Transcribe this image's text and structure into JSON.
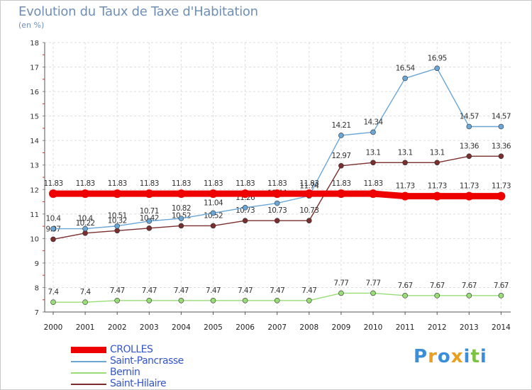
{
  "header": {
    "title": "Evolution du Taux de Taxe d'Habitation",
    "subtitle": "(en %)"
  },
  "legend": {
    "items": [
      {
        "label": "CROLLES",
        "color": "#ee0000",
        "thick": true
      },
      {
        "label": "Saint-Pancrasse",
        "color": "#6aa6d6",
        "thick": false
      },
      {
        "label": "Bernin",
        "color": "#99dd77",
        "thick": false
      },
      {
        "label": "Saint-Hilaire",
        "color": "#7a2e2e",
        "thick": false
      }
    ]
  },
  "logo": {
    "text": "Proxiti",
    "letters": [
      "P",
      "r",
      "o",
      "x",
      "i",
      "t",
      "i"
    ],
    "colors": [
      "#3b8ed8",
      "#e8a020",
      "#3b8ed8",
      "#e8a020",
      "#3b8ed8",
      "#7cc242",
      "#3b8ed8"
    ]
  },
  "chart_data": {
    "type": "line",
    "x": [
      "2000",
      "2001",
      "2002",
      "2003",
      "2004",
      "2005",
      "2006",
      "2007",
      "2008",
      "2009",
      "2010",
      "2011",
      "2012",
      "2013",
      "2014"
    ],
    "ylim": [
      7,
      18
    ],
    "yticks": [
      "7",
      "8",
      "9",
      "10",
      "11",
      "12",
      "13",
      "14",
      "15",
      "16",
      "17",
      "18"
    ],
    "series": [
      {
        "name": "Bernin",
        "color": "#99dd77",
        "values": [
          7.4,
          7.4,
          7.47,
          7.47,
          7.47,
          7.47,
          7.47,
          7.47,
          7.47,
          7.77,
          7.77,
          7.67,
          7.67,
          7.67,
          7.67
        ],
        "labels": [
          "7.4",
          "7.4",
          "7.47",
          "7.47",
          "7.47",
          "7.47",
          "7.47",
          "7.47",
          "7.47",
          "7.77",
          "7.77",
          "7.67",
          "7.67",
          "7.67",
          "7.67"
        ]
      },
      {
        "name": "Saint-Hilaire",
        "color": "#7a2e2e",
        "values": [
          9.97,
          10.22,
          10.32,
          10.42,
          10.52,
          10.52,
          10.73,
          10.73,
          10.73,
          12.97,
          13.1,
          13.1,
          13.1,
          13.36,
          13.36
        ],
        "labels": [
          "9.97",
          "10.22",
          "10.32",
          "10.42",
          "10.52",
          "10.52",
          "10.73",
          "10.73",
          "10.73",
          "12.97",
          "13.1",
          "13.1",
          "13.1",
          "13.36",
          "13.36"
        ]
      },
      {
        "name": "Saint-Pancrasse",
        "color": "#6aa6d6",
        "values": [
          10.4,
          10.4,
          10.51,
          10.71,
          10.82,
          11.04,
          11.26,
          11.44,
          11.74,
          14.21,
          14.34,
          16.54,
          16.95,
          14.57,
          14.57
        ],
        "labels": [
          "10.4",
          "10.4",
          "10.51",
          "10.71",
          "10.82",
          "11.04",
          "11.26",
          "11.44",
          "11.74",
          "14.21",
          "14.34",
          "16.54",
          "16.95",
          "14.57",
          "14.57"
        ]
      },
      {
        "name": "CROLLES",
        "color": "#ee0000",
        "values": [
          11.83,
          11.83,
          11.83,
          11.83,
          11.83,
          11.83,
          11.83,
          11.83,
          11.83,
          11.83,
          11.83,
          11.73,
          11.73,
          11.73,
          11.73
        ],
        "labels": [
          "11.83",
          "11.83",
          "11.83",
          "11.83",
          "11.83",
          "11.83",
          "11.83",
          "11.83",
          "11.83",
          "11.83",
          "11.83",
          "11.73",
          "11.73",
          "11.73",
          "11.73"
        ]
      }
    ]
  }
}
